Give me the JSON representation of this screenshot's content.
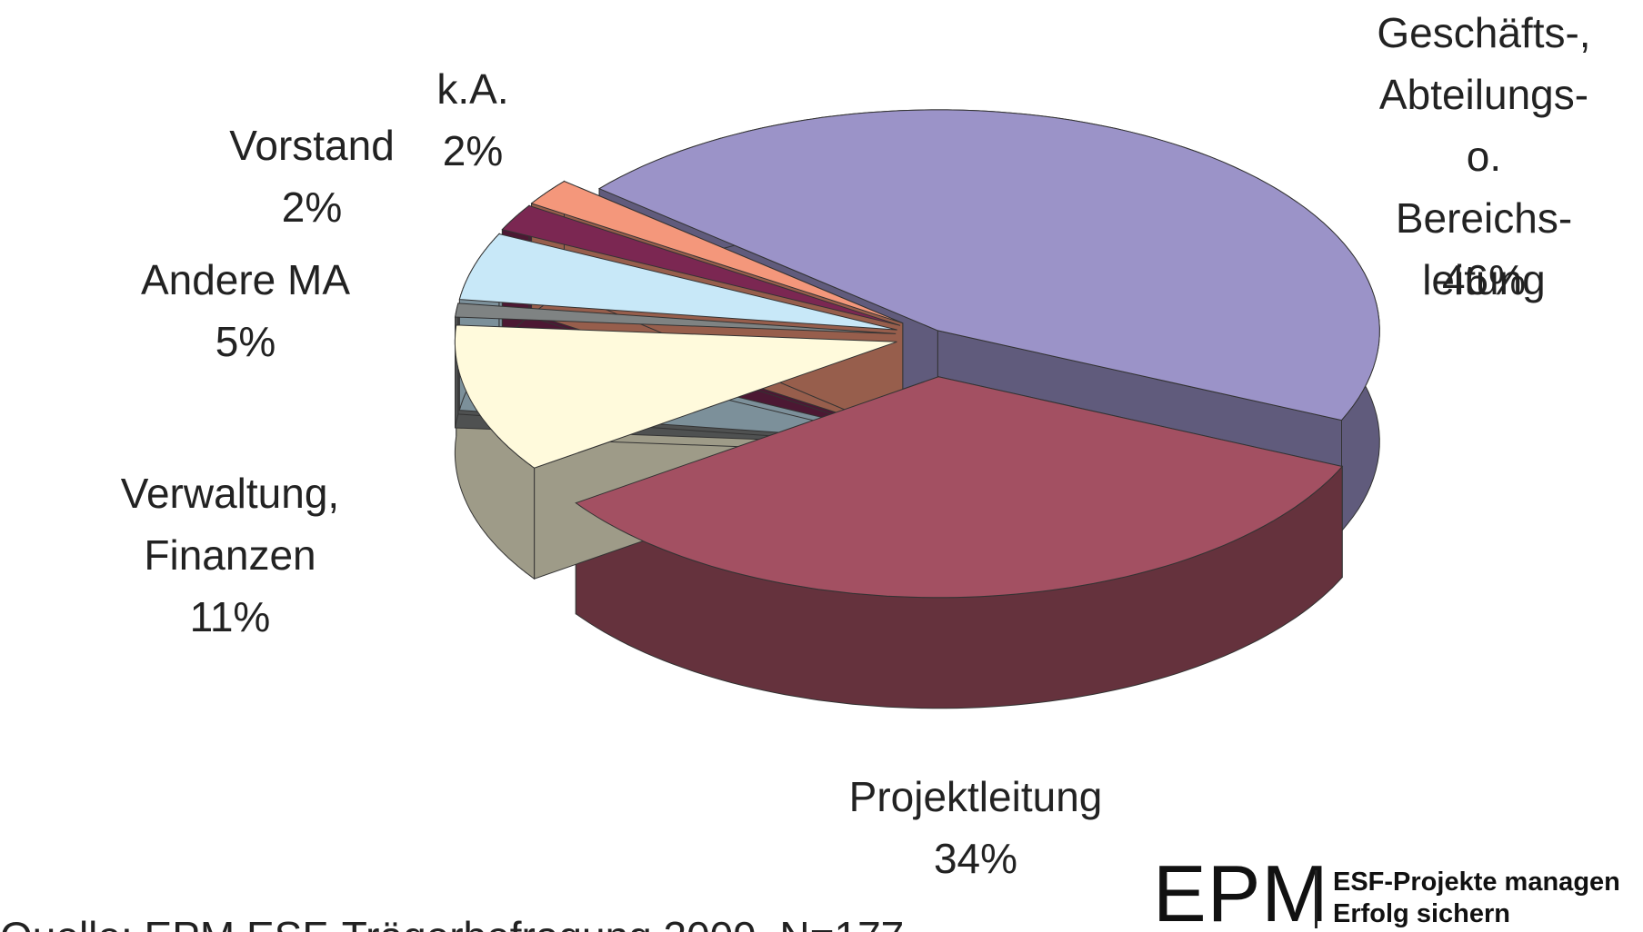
{
  "chart_data": {
    "type": "pie",
    "categories": [
      "Geschäfts-,\nAbteilungs- o.\nBereichs-\nleitung",
      "Projektleitung",
      "Verwaltung,\nFinanzen",
      null,
      "Andere MA",
      "Vorstand",
      "k.A."
    ],
    "values": [
      46,
      34,
      11,
      1,
      5,
      2,
      2
    ],
    "value_labels": [
      "46%",
      "34%",
      "11%",
      null,
      "5%",
      "2%",
      "2%"
    ],
    "colors": [
      "#9b93c8",
      "#a35062",
      "#fffadc",
      "#7f8383",
      "#c8e8f8",
      "#7b2752",
      "#f4977b"
    ],
    "source": "Quelle: EPM ESF-Trägerbefragung 2009, N=177"
  },
  "logo": {
    "title": "EPM",
    "line1": "ESF-Projekte managen",
    "line2": "Erfolg sichern"
  }
}
